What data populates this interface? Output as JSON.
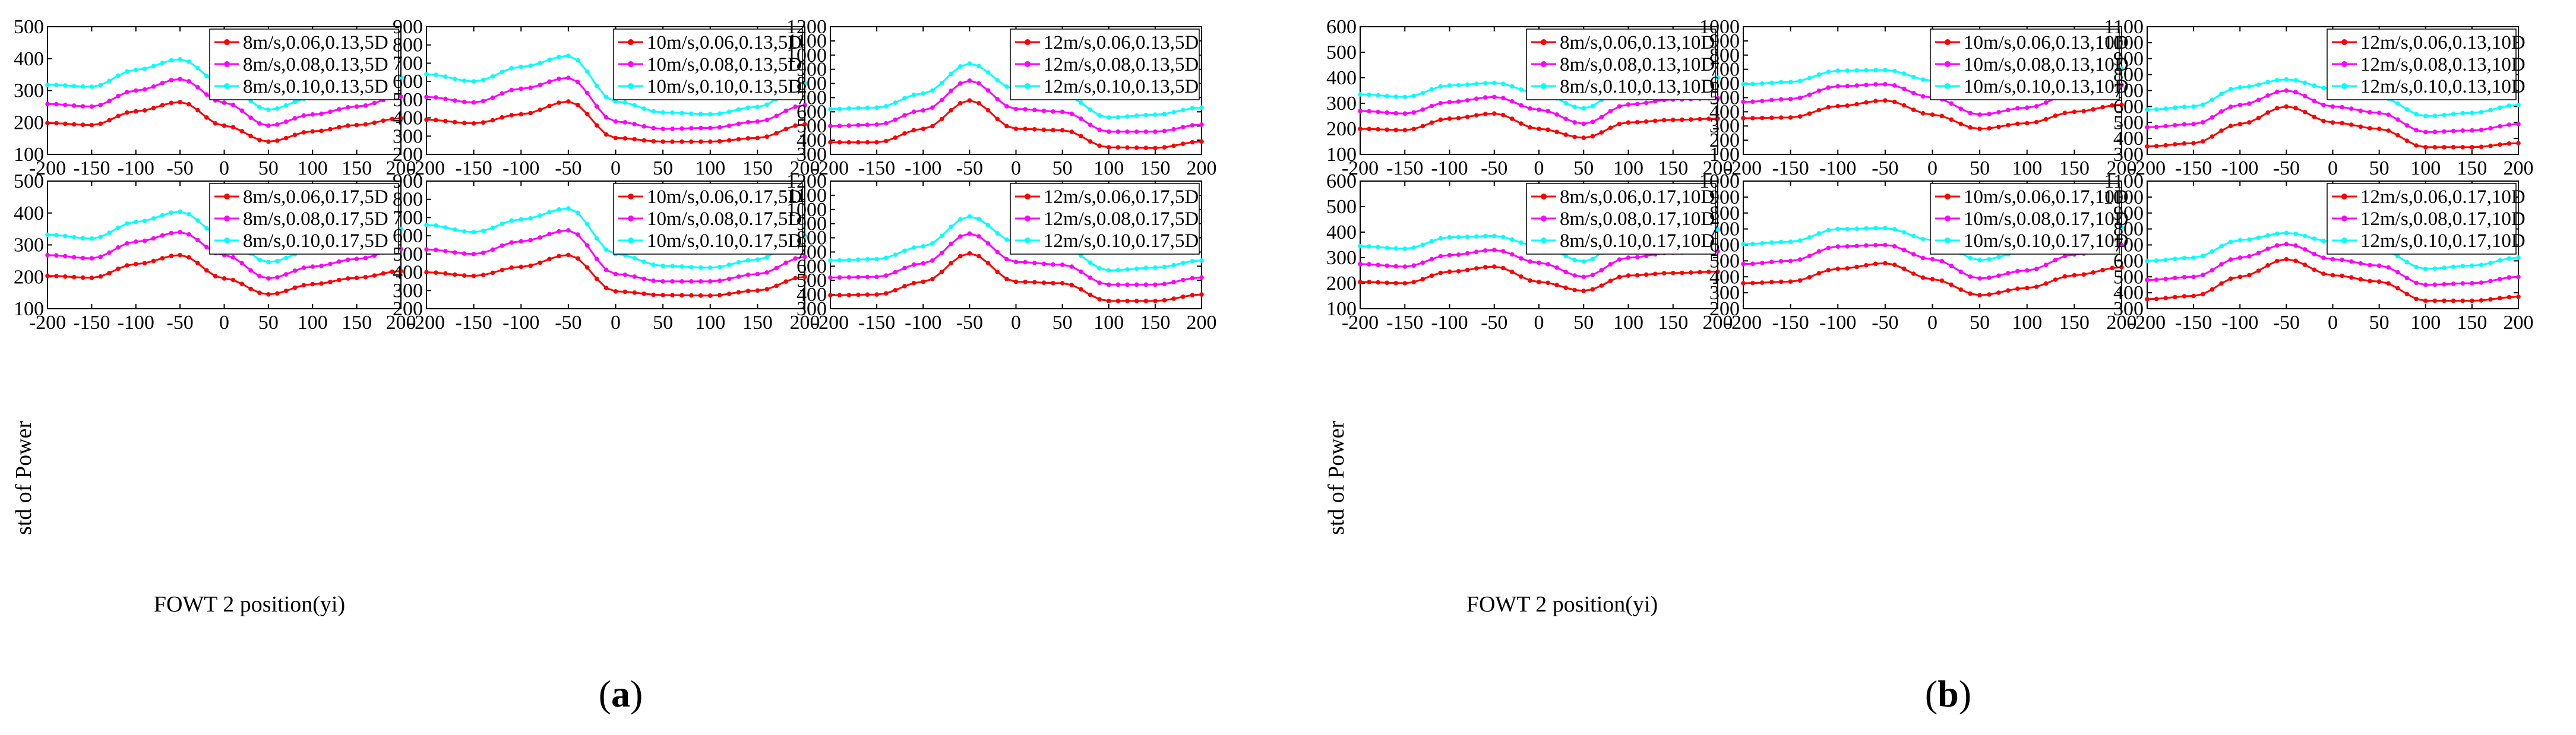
{
  "figure": {
    "panel_labels": [
      {
        "open": "(",
        "letter": "a",
        "close": ")"
      },
      {
        "open": "(",
        "letter": "b",
        "close": ")"
      }
    ],
    "xlabel": "FOWT 2 position(yi)",
    "ylabel": "std of Power",
    "colors": {
      "low": "#ff0000",
      "mid": "#ff00ff",
      "high": "#00ffff",
      "axis": "#000000"
    }
  },
  "chart_data": [
    {
      "type": "line",
      "group": "a",
      "row": 0,
      "col": 0,
      "ylim": [
        100,
        500
      ],
      "yticks": [
        100,
        200,
        300,
        400,
        500
      ],
      "xlim": [
        -200,
        200
      ],
      "xticks": [
        -200,
        -150,
        -100,
        -50,
        0,
        50,
        100,
        150,
        200
      ],
      "x": [
        -200,
        -150,
        -100,
        -50,
        0,
        50,
        100,
        150,
        200
      ],
      "series": [
        {
          "name": "8m/s,0.06,0.13,5D",
          "color": "#ff0000",
          "values": [
            198,
            192,
            235,
            264,
            190,
            140,
            172,
            192,
            213
          ]
        },
        {
          "name": "8m/s,0.08,0.13,5D",
          "color": "#ff00ff",
          "values": [
            258,
            250,
            300,
            336,
            262,
            190,
            225,
            250,
            281
          ]
        },
        {
          "name": "8m/s,0.10,0.13,5D",
          "color": "#00ffff",
          "values": [
            318,
            312,
            365,
            398,
            318,
            240,
            278,
            305,
            342
          ]
        }
      ]
    },
    {
      "type": "line",
      "group": "a",
      "row": 0,
      "col": 1,
      "ylim": [
        200,
        900
      ],
      "yticks": [
        200,
        300,
        400,
        500,
        600,
        700,
        800,
        900
      ],
      "xlim": [
        -200,
        200
      ],
      "xticks": [
        -200,
        -150,
        -100,
        -50,
        0,
        50,
        100,
        150,
        200
      ],
      "x": [
        -200,
        -150,
        -100,
        -50,
        0,
        50,
        100,
        150,
        200
      ],
      "series": [
        {
          "name": "10m/s,0.06,0.13,5D",
          "color": "#ff0000",
          "values": [
            390,
            370,
            420,
            490,
            290,
            270,
            270,
            290,
            365
          ]
        },
        {
          "name": "10m/s,0.08,0.13,5D",
          "color": "#ff00ff",
          "values": [
            515,
            485,
            560,
            620,
            380,
            340,
            345,
            380,
            470
          ]
        },
        {
          "name": "10m/s,0.10,0.13,5D",
          "color": "#00ffff",
          "values": [
            640,
            600,
            680,
            740,
            490,
            430,
            420,
            460,
            590
          ]
        }
      ]
    },
    {
      "type": "line",
      "group": "a",
      "row": 0,
      "col": 2,
      "ylim": [
        300,
        1200
      ],
      "yticks": [
        300,
        400,
        500,
        600,
        700,
        800,
        900,
        1000,
        1100,
        1200
      ],
      "xlim": [
        -200,
        200
      ],
      "xticks": [
        -200,
        -150,
        -100,
        -50,
        0,
        50,
        100,
        150,
        200
      ],
      "x": [
        -200,
        -150,
        -100,
        -50,
        0,
        50,
        100,
        150,
        200
      ],
      "series": [
        {
          "name": "12m/s,0.06,0.13,5D",
          "color": "#ff0000",
          "values": [
            385,
            385,
            480,
            680,
            480,
            470,
            350,
            345,
            390
          ]
        },
        {
          "name": "12m/s,0.08,0.13,5D",
          "color": "#ff00ff",
          "values": [
            500,
            510,
            610,
            820,
            620,
            600,
            460,
            460,
            510
          ]
        },
        {
          "name": "12m/s,0.10,0.13,5D",
          "color": "#00ffff",
          "values": [
            620,
            630,
            730,
            940,
            760,
            720,
            560,
            580,
            630
          ]
        }
      ]
    },
    {
      "type": "line",
      "group": "a",
      "row": 1,
      "col": 0,
      "ylim": [
        100,
        500
      ],
      "yticks": [
        100,
        200,
        300,
        400,
        500
      ],
      "xlim": [
        -200,
        200
      ],
      "xticks": [
        -200,
        -150,
        -100,
        -50,
        0,
        50,
        100,
        150,
        200
      ],
      "x": [
        -200,
        -150,
        -100,
        -50,
        0,
        50,
        100,
        150,
        200
      ],
      "series": [
        {
          "name": "8m/s,0.06,0.17,5D",
          "color": "#ff0000",
          "values": [
            203,
            197,
            240,
            268,
            195,
            145,
            177,
            197,
            218
          ]
        },
        {
          "name": "8m/s,0.08,0.17,5D",
          "color": "#ff00ff",
          "values": [
            268,
            258,
            310,
            340,
            268,
            195,
            232,
            256,
            287
          ]
        },
        {
          "name": "8m/s,0.10,0.17,5D",
          "color": "#00ffff",
          "values": [
            332,
            320,
            372,
            404,
            325,
            246,
            284,
            312,
            350
          ]
        }
      ]
    },
    {
      "type": "line",
      "group": "a",
      "row": 1,
      "col": 1,
      "ylim": [
        200,
        900
      ],
      "yticks": [
        200,
        300,
        400,
        500,
        600,
        700,
        800,
        900
      ],
      "xlim": [
        -200,
        200
      ],
      "xticks": [
        -200,
        -150,
        -100,
        -50,
        0,
        50,
        100,
        150,
        200
      ],
      "x": [
        -200,
        -150,
        -100,
        -50,
        0,
        50,
        100,
        150,
        200
      ],
      "series": [
        {
          "name": "10m/s,0.06,0.17,5D",
          "color": "#ff0000",
          "values": [
            400,
            380,
            430,
            495,
            295,
            275,
            272,
            300,
            375
          ]
        },
        {
          "name": "10m/s,0.08,0.17,5D",
          "color": "#ff00ff",
          "values": [
            525,
            500,
            570,
            630,
            390,
            350,
            350,
            390,
            485
          ]
        },
        {
          "name": "10m/s,0.10,0.17,5D",
          "color": "#00ffff",
          "values": [
            660,
            620,
            690,
            750,
            500,
            435,
            425,
            470,
            600
          ]
        }
      ]
    },
    {
      "type": "line",
      "group": "a",
      "row": 1,
      "col": 2,
      "ylim": [
        300,
        1200
      ],
      "yticks": [
        300,
        400,
        500,
        600,
        700,
        800,
        900,
        1000,
        1100,
        1200
      ],
      "xlim": [
        -200,
        200
      ],
      "xticks": [
        -200,
        -150,
        -100,
        -50,
        0,
        50,
        100,
        150,
        200
      ],
      "x": [
        -200,
        -150,
        -100,
        -50,
        0,
        50,
        100,
        150,
        200
      ],
      "series": [
        {
          "name": "12m/s,0.06,0.17,5D",
          "color": "#ff0000",
          "values": [
            395,
            400,
            490,
            690,
            490,
            480,
            355,
            355,
            400
          ]
        },
        {
          "name": "12m/s,0.08,0.17,5D",
          "color": "#ff00ff",
          "values": [
            520,
            525,
            620,
            830,
            630,
            610,
            470,
            470,
            520
          ]
        },
        {
          "name": "12m/s,0.10,0.17,5D",
          "color": "#00ffff",
          "values": [
            640,
            650,
            740,
            950,
            770,
            730,
            570,
            590,
            640
          ]
        }
      ]
    },
    {
      "type": "line",
      "group": "b",
      "row": 0,
      "col": 0,
      "ylim": [
        100,
        600
      ],
      "yticks": [
        100,
        200,
        300,
        400,
        500,
        600
      ],
      "xlim": [
        -200,
        200
      ],
      "xticks": [
        -200,
        -150,
        -100,
        -50,
        0,
        50,
        100,
        150,
        200
      ],
      "x": [
        -200,
        -150,
        -100,
        -50,
        0,
        50,
        100,
        150,
        200
      ],
      "series": [
        {
          "name": "8m/s,0.06,0.13,10D",
          "color": "#ff0000",
          "values": [
            200,
            195,
            240,
            260,
            200,
            165,
            225,
            235,
            240
          ]
        },
        {
          "name": "8m/s,0.08,0.13,10D",
          "color": "#ff00ff",
          "values": [
            270,
            260,
            305,
            325,
            275,
            220,
            295,
            315,
            320
          ]
        },
        {
          "name": "8m/s,0.10,0.13,10D",
          "color": "#00ffff",
          "values": [
            335,
            325,
            370,
            380,
            340,
            280,
            375,
            395,
            400
          ]
        }
      ]
    },
    {
      "type": "line",
      "group": "b",
      "row": 0,
      "col": 1,
      "ylim": [
        100,
        1000
      ],
      "yticks": [
        100,
        200,
        300,
        400,
        500,
        600,
        700,
        800,
        900,
        1000
      ],
      "xlim": [
        -200,
        200
      ],
      "xticks": [
        -200,
        -150,
        -100,
        -50,
        0,
        50,
        100,
        150,
        200
      ],
      "x": [
        -200,
        -150,
        -100,
        -50,
        0,
        50,
        100,
        150,
        200
      ],
      "series": [
        {
          "name": "10m/s,0.06,0.13,10D",
          "color": "#ff0000",
          "values": [
            355,
            360,
            440,
            480,
            380,
            280,
            320,
            400,
            450
          ]
        },
        {
          "name": "10m/s,0.08,0.13,10D",
          "color": "#ff00ff",
          "values": [
            470,
            490,
            580,
            595,
            500,
            380,
            430,
            530,
            590
          ]
        },
        {
          "name": "10m/s,0.10,0.13,10D",
          "color": "#00ffff",
          "values": [
            595,
            610,
            690,
            695,
            620,
            500,
            550,
            660,
            705
          ]
        }
      ]
    },
    {
      "type": "line",
      "group": "b",
      "row": 0,
      "col": 2,
      "ylim": [
        300,
        1100
      ],
      "yticks": [
        300,
        400,
        500,
        600,
        700,
        800,
        900,
        1000,
        1100
      ],
      "xlim": [
        -200,
        200
      ],
      "xticks": [
        -200,
        -150,
        -100,
        -50,
        0,
        50,
        100,
        150,
        200
      ],
      "x": [
        -200,
        -150,
        -100,
        -50,
        0,
        50,
        100,
        150,
        200
      ],
      "series": [
        {
          "name": "12m/s,0.06,0.13,10D",
          "color": "#ff0000",
          "values": [
            350,
            370,
            490,
            600,
            500,
            460,
            345,
            345,
            370
          ]
        },
        {
          "name": "12m/s,0.08,0.13,10D",
          "color": "#ff00ff",
          "values": [
            470,
            490,
            610,
            700,
            600,
            560,
            440,
            450,
            490
          ]
        },
        {
          "name": "12m/s,0.10,0.13,10D",
          "color": "#00ffff",
          "values": [
            580,
            600,
            720,
            770,
            710,
            660,
            540,
            560,
            610
          ]
        }
      ]
    },
    {
      "type": "line",
      "group": "b",
      "row": 1,
      "col": 0,
      "ylim": [
        100,
        600
      ],
      "yticks": [
        100,
        200,
        300,
        400,
        500,
        600
      ],
      "xlim": [
        -200,
        200
      ],
      "xticks": [
        -200,
        -150,
        -100,
        -50,
        0,
        50,
        100,
        150,
        200
      ],
      "x": [
        -200,
        -150,
        -100,
        -50,
        0,
        50,
        100,
        150,
        200
      ],
      "series": [
        {
          "name": "8m/s,0.06,0.17,10D",
          "color": "#ff0000",
          "values": [
            205,
            200,
            245,
            265,
            205,
            170,
            230,
            240,
            245
          ]
        },
        {
          "name": "8m/s,0.08,0.17,10D",
          "color": "#ff00ff",
          "values": [
            275,
            265,
            310,
            330,
            280,
            225,
            300,
            320,
            325
          ]
        },
        {
          "name": "8m/s,0.10,0.17,10D",
          "color": "#00ffff",
          "values": [
            345,
            335,
            380,
            385,
            345,
            285,
            385,
            405,
            410
          ]
        }
      ]
    },
    {
      "type": "line",
      "group": "b",
      "row": 1,
      "col": 1,
      "ylim": [
        200,
        1000
      ],
      "yticks": [
        200,
        300,
        400,
        500,
        600,
        700,
        800,
        900,
        1000
      ],
      "xlim": [
        -200,
        200
      ],
      "xticks": [
        -200,
        -150,
        -100,
        -50,
        0,
        50,
        100,
        150,
        200
      ],
      "x": [
        -200,
        -150,
        -100,
        -50,
        0,
        50,
        100,
        150,
        200
      ],
      "series": [
        {
          "name": "10m/s,0.06,0.17,10D",
          "color": "#ff0000",
          "values": [
            360,
            370,
            450,
            485,
            385,
            285,
            330,
            410,
            460
          ]
        },
        {
          "name": "10m/s,0.08,0.17,10D",
          "color": "#ff00ff",
          "values": [
            480,
            500,
            590,
            600,
            510,
            390,
            440,
            540,
            600
          ]
        },
        {
          "name": "10m/s,0.10,0.17,10D",
          "color": "#00ffff",
          "values": [
            605,
            620,
            700,
            705,
            630,
            505,
            560,
            670,
            710
          ]
        }
      ]
    },
    {
      "type": "line",
      "group": "b",
      "row": 1,
      "col": 2,
      "ylim": [
        300,
        1100
      ],
      "yticks": [
        300,
        400,
        500,
        600,
        700,
        800,
        900,
        1000,
        1100
      ],
      "xlim": [
        -200,
        200
      ],
      "xticks": [
        -200,
        -150,
        -100,
        -50,
        0,
        50,
        100,
        150,
        200
      ],
      "x": [
        -200,
        -150,
        -100,
        -50,
        0,
        50,
        100,
        150,
        200
      ],
      "series": [
        {
          "name": "12m/s,0.06,0.17,10D",
          "color": "#ff0000",
          "values": [
            360,
            380,
            500,
            610,
            510,
            470,
            350,
            350,
            375
          ]
        },
        {
          "name": "12m/s,0.08,0.17,10D",
          "color": "#ff00ff",
          "values": [
            480,
            500,
            620,
            705,
            610,
            570,
            450,
            460,
            500
          ]
        },
        {
          "name": "12m/s,0.10,0.17,10D",
          "color": "#00ffff",
          "values": [
            600,
            620,
            730,
            775,
            720,
            670,
            550,
            570,
            620
          ]
        }
      ]
    }
  ]
}
